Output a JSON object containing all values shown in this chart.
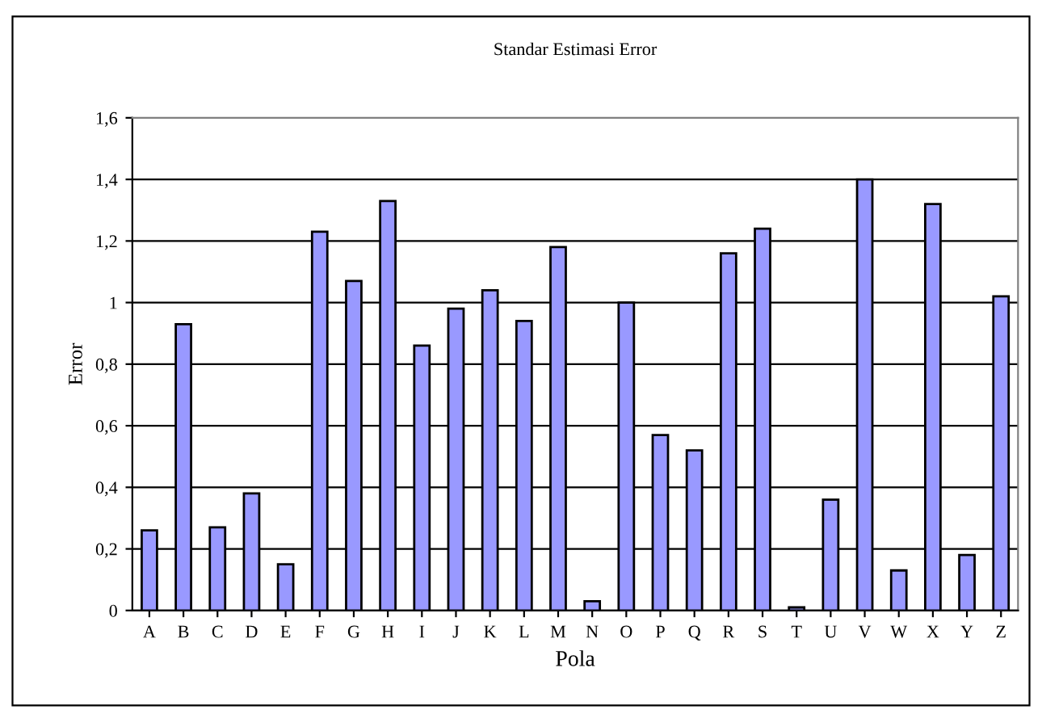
{
  "chart_data": {
    "type": "bar",
    "title": "Standar Estimasi Error",
    "xlabel": "Pola",
    "ylabel": "Error",
    "categories": [
      "A",
      "B",
      "C",
      "D",
      "E",
      "F",
      "G",
      "H",
      "I",
      "J",
      "K",
      "L",
      "M",
      "N",
      "O",
      "P",
      "Q",
      "R",
      "S",
      "T",
      "U",
      "V",
      "W",
      "X",
      "Y",
      "Z"
    ],
    "values": [
      0.26,
      0.93,
      0.27,
      0.38,
      0.15,
      1.23,
      1.07,
      1.33,
      0.86,
      0.98,
      1.04,
      0.94,
      1.18,
      0.03,
      1.0,
      0.57,
      0.52,
      1.16,
      1.24,
      0.01,
      0.36,
      1.4,
      0.13,
      1.32,
      0.18,
      1.02
    ],
    "color": "#9999ff",
    "ylim": [
      0,
      1.6
    ],
    "yticks": [
      0,
      {
        "value": 0.2,
        "label": "0,2"
      },
      {
        "value": 0.4,
        "label": "0,4"
      },
      {
        "value": 0.6,
        "label": "0,6"
      },
      {
        "value": 0.8,
        "label": "0,8"
      },
      1,
      {
        "value": 1.2,
        "label": "1,2"
      },
      {
        "value": 1.4,
        "label": "1,4"
      },
      {
        "value": 1.6,
        "label": "1,6"
      }
    ],
    "grid": "y",
    "legend": false
  }
}
